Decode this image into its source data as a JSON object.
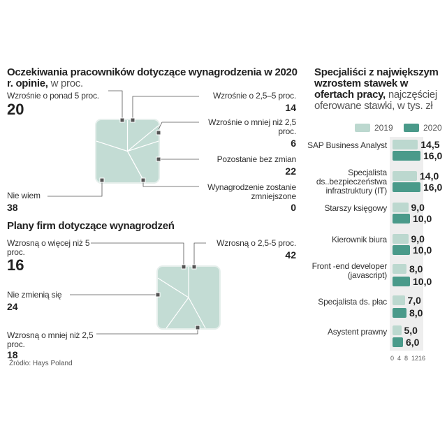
{
  "colors": {
    "light": "#bcd8cf",
    "dark": "#4a9a8a",
    "square": "#c3dcd4",
    "track": "#eeeeee"
  },
  "chart_data": [
    {
      "type": "pie",
      "shape": "square",
      "title": "Oczekiwania pracowników dotyczące wynagrodzenia w 2020 r. opinie,",
      "subtitle": "w proc.",
      "slices": [
        {
          "label": "Wzrośnie o 2,5–5 proc.",
          "value": 14
        },
        {
          "label": "Wzrośnie o mniej niż 2,5 proc.",
          "value": 6
        },
        {
          "label": "Pozostanie bez zmian",
          "value": 22
        },
        {
          "label": "Wynagrodzenie zostanie zmniejszone",
          "value": 0
        },
        {
          "label": "Nie wiem",
          "value": 38
        },
        {
          "label": "Wzrośnie o ponad 5 proc.",
          "value": 20
        }
      ]
    },
    {
      "type": "pie",
      "shape": "square",
      "title": "Plany firm dotyczące wynagrodzeń",
      "slices": [
        {
          "label": "Wzrosną o 2,5-5 proc.",
          "value": 42
        },
        {
          "label": "Wzrosną o mniej niż 2,5 proc.",
          "value": 18
        },
        {
          "label": "Nie zmienią się",
          "value": 24
        },
        {
          "label": "Wzrosną o więcej niż 5 proc.",
          "value": 16
        }
      ]
    },
    {
      "type": "bar",
      "orientation": "horizontal",
      "title": "Specjaliści z największym wzrostem stawek w ofertach pracy,",
      "subtitle": "najczęściej oferowane stawki, w tys. zł",
      "categories": [
        "SAP Business Analyst",
        "Specjalista ds..bezpieczeństwa infrastruktury (IT)",
        "Starszy księgowy",
        "Kierownik biura",
        "Front -end developer (javascript)",
        "Specjalista ds. płac",
        "Asystent prawny"
      ],
      "series": [
        {
          "name": "2019",
          "values": [
            14.5,
            14.0,
            9.0,
            9.0,
            8.0,
            7.0,
            5.0
          ],
          "labels": [
            "14,5",
            "14,0",
            "9,0",
            "9,0",
            "8,0",
            "7,0",
            "5,0"
          ]
        },
        {
          "name": "2020",
          "values": [
            16.0,
            16.0,
            10.0,
            10.0,
            10.0,
            8.0,
            6.0
          ],
          "labels": [
            "16,0",
            "16,0",
            "10,0",
            "10,0",
            "10,0",
            "8,0",
            "6,0"
          ]
        }
      ],
      "xticks": [
        "0",
        "4",
        "8",
        "12",
        "16"
      ],
      "xlim": [
        0,
        16
      ],
      "legend": "top"
    }
  ],
  "source": "Źródło: Hays Poland"
}
